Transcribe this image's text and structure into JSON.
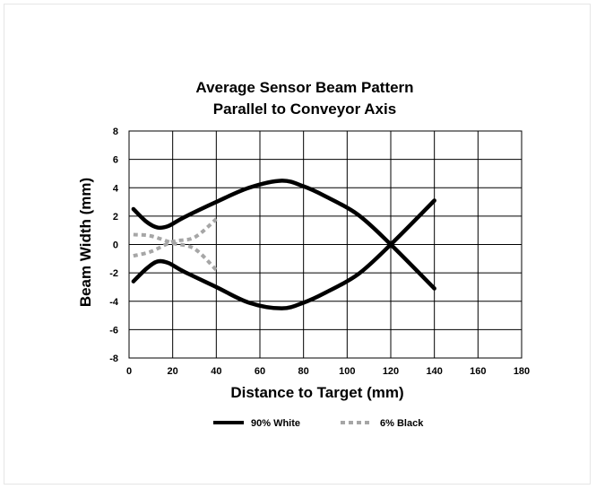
{
  "chart_data": {
    "type": "line",
    "title": "Average Sensor Beam Pattern",
    "subtitle": "Parallel to Conveyor Axis",
    "xlabel": "Distance to Target (mm)",
    "ylabel": "Beam Width (mm)",
    "xlim": [
      0,
      180
    ],
    "ylim": [
      -8,
      8
    ],
    "x_ticks": [
      "0",
      "20",
      "40",
      "60",
      "80",
      "100",
      "120",
      "140",
      "160",
      "180"
    ],
    "y_ticks": [
      "8",
      "6",
      "4",
      "2",
      "0",
      "-2",
      "-4",
      "-6",
      "-8"
    ],
    "grid": true,
    "legend": "bottom",
    "colors": {
      "white_series": "#000000",
      "black_series": "#a6a6a6"
    },
    "series": [
      {
        "name": "90% White",
        "style": "solid",
        "upper": {
          "x": [
            2,
            8,
            13,
            18,
            25,
            40,
            55,
            70,
            80,
            90,
            105,
            120,
            140
          ],
          "y": [
            2.5,
            1.6,
            1.2,
            1.3,
            1.9,
            3.0,
            4.0,
            4.5,
            4.1,
            3.4,
            2.1,
            0,
            -3.1
          ]
        },
        "lower": {
          "x": [
            2,
            8,
            13,
            18,
            25,
            40,
            55,
            70,
            80,
            90,
            105,
            120,
            140
          ],
          "y": [
            -2.6,
            -1.7,
            -1.2,
            -1.3,
            -1.9,
            -3.0,
            -4.1,
            -4.5,
            -4.1,
            -3.4,
            -2.1,
            0,
            3.1
          ]
        }
      },
      {
        "name": "6% Black",
        "style": "dashed",
        "upper": {
          "x": [
            2,
            10,
            20,
            30,
            40
          ],
          "y": [
            0.7,
            0.6,
            0.1,
            -0.3,
            -1.8
          ]
        },
        "lower": {
          "x": [
            2,
            10,
            20,
            30,
            40
          ],
          "y": [
            -0.8,
            -0.5,
            0.2,
            0.5,
            1.8
          ]
        }
      }
    ]
  }
}
